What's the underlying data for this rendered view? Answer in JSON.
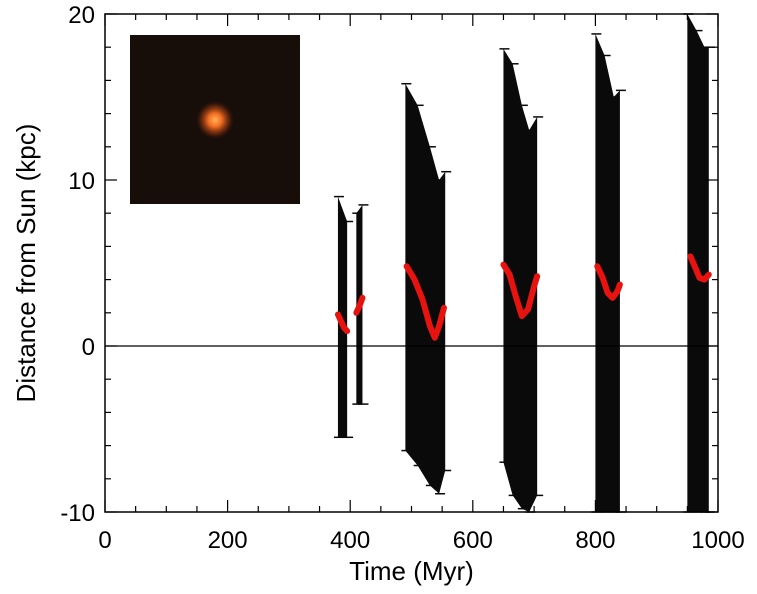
{
  "chart_data": {
    "type": "line",
    "title": "",
    "xlabel": "Time (Myr)",
    "ylabel": "Distance from Sun (kpc)",
    "xlim": [
      0,
      1000
    ],
    "ylim": [
      -10,
      20
    ],
    "xticks": [
      0,
      200,
      400,
      600,
      800,
      1000
    ],
    "yticks": [
      -10,
      0,
      10,
      20
    ],
    "xtick_labels": [
      "0",
      "200",
      "400",
      "600",
      "800",
      "1000"
    ],
    "ytick_labels": [
      "-10",
      "0",
      "10",
      "20"
    ],
    "reference_line_y": 0,
    "grid": false,
    "colors": {
      "estimate": "#e8130f",
      "uncertainty": "#0a0a0a",
      "axis": "#000000"
    },
    "uncertainty_bands": [
      {
        "x": [
          380,
          395
        ],
        "upper": [
          9.0,
          7.5
        ],
        "lower": [
          -5.5,
          -5.5
        ]
      },
      {
        "x": [
          410,
          420
        ],
        "upper": [
          8.0,
          8.5
        ],
        "lower": [
          -3.5,
          -3.5
        ]
      },
      {
        "x": [
          490,
          510,
          530,
          545,
          555
        ],
        "upper": [
          15.8,
          14.5,
          12.0,
          10.0,
          10.5
        ],
        "lower": [
          -6.3,
          -7.2,
          -8.4,
          -8.9,
          -7.5
        ]
      },
      {
        "x": [
          650,
          665,
          680,
          692,
          705
        ],
        "upper": [
          17.9,
          17.0,
          14.5,
          13.0,
          13.8
        ],
        "lower": [
          -7.0,
          -9.0,
          -9.8,
          -10.0,
          -9.0
        ]
      },
      {
        "x": [
          800,
          815,
          830,
          840
        ],
        "upper": [
          18.8,
          17.5,
          15.0,
          15.4
        ],
        "lower": [
          -10.0,
          -10.0,
          -10.0,
          -10.0
        ]
      },
      {
        "x": [
          950,
          965,
          978,
          985
        ],
        "upper": [
          20.0,
          19.0,
          18.0,
          18.0
        ],
        "lower": [
          -10.0,
          -10.0,
          -10.0,
          -10.0
        ]
      }
    ],
    "series": [
      {
        "x": [
          380,
          385,
          390,
          395
        ],
        "y": [
          1.9,
          1.5,
          1.1,
          0.9
        ]
      },
      {
        "x": [
          410,
          415,
          420
        ],
        "y": [
          2.0,
          2.4,
          2.9
        ]
      },
      {
        "x": [
          492,
          505,
          518,
          530,
          538,
          545,
          553
        ],
        "y": [
          4.8,
          4.0,
          2.8,
          1.2,
          0.5,
          1.2,
          2.3
        ]
      },
      {
        "x": [
          650,
          660,
          670,
          680,
          690,
          700,
          705
        ],
        "y": [
          4.9,
          4.3,
          3.0,
          1.8,
          2.2,
          3.6,
          4.2
        ]
      },
      {
        "x": [
          803,
          812,
          820,
          828,
          836,
          840
        ],
        "y": [
          4.8,
          4.1,
          3.2,
          2.9,
          3.3,
          3.7
        ]
      },
      {
        "x": [
          955,
          962,
          970,
          978,
          985
        ],
        "y": [
          5.4,
          4.8,
          4.1,
          4.0,
          4.3
        ]
      }
    ]
  },
  "inset": {
    "background": "#170d09",
    "star_color": "#f06a1e",
    "glow_color": "#c94a14"
  }
}
